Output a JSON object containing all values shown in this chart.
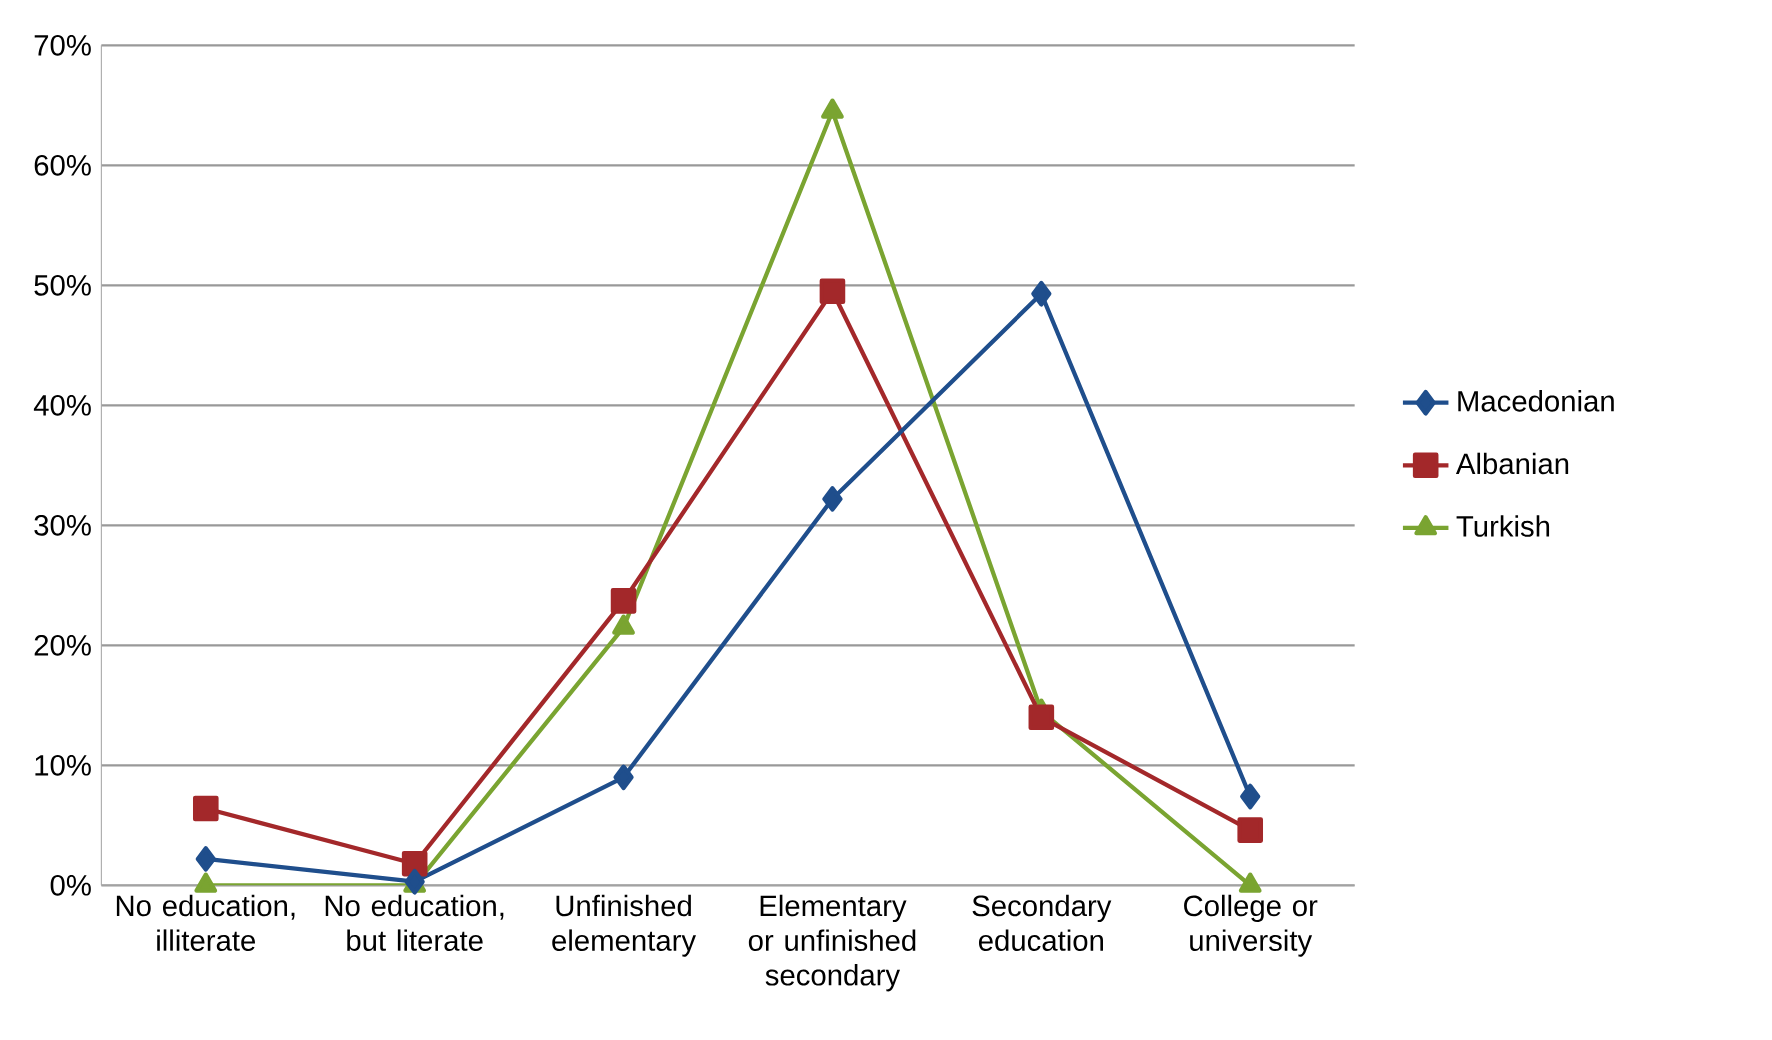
{
  "chart_data": {
    "type": "line",
    "categories": [
      "No education, illiterate",
      "No education, but literate",
      "Unfinished elementary",
      "Elementary or unfinished secondary",
      "Secondary education",
      "College or university"
    ],
    "series": [
      {
        "name": "Macedonian",
        "color": "#1f4e8c",
        "marker": "diamond",
        "values": [
          2.2,
          0.3,
          9.0,
          32.2,
          49.3,
          7.4
        ]
      },
      {
        "name": "Albanian",
        "color": "#a3282a",
        "marker": "square",
        "values": [
          6.4,
          1.8,
          23.7,
          49.5,
          14.0,
          4.6
        ]
      },
      {
        "name": "Turkish",
        "color": "#7aa431",
        "marker": "triangle",
        "values": [
          0,
          0,
          21.5,
          64.5,
          14.5,
          0
        ]
      }
    ],
    "ylim": [
      0,
      70
    ],
    "yticks": [
      {
        "value": 0,
        "label": "0%"
      },
      {
        "value": 10,
        "label": "10%"
      },
      {
        "value": 20,
        "label": "20%"
      },
      {
        "value": 30,
        "label": "30%"
      },
      {
        "value": 40,
        "label": "40%"
      },
      {
        "value": 50,
        "label": "50%"
      },
      {
        "value": 60,
        "label": "60%"
      },
      {
        "value": 70,
        "label": "70%"
      }
    ],
    "grid": "y",
    "legend": "right",
    "line_style": "solid"
  }
}
